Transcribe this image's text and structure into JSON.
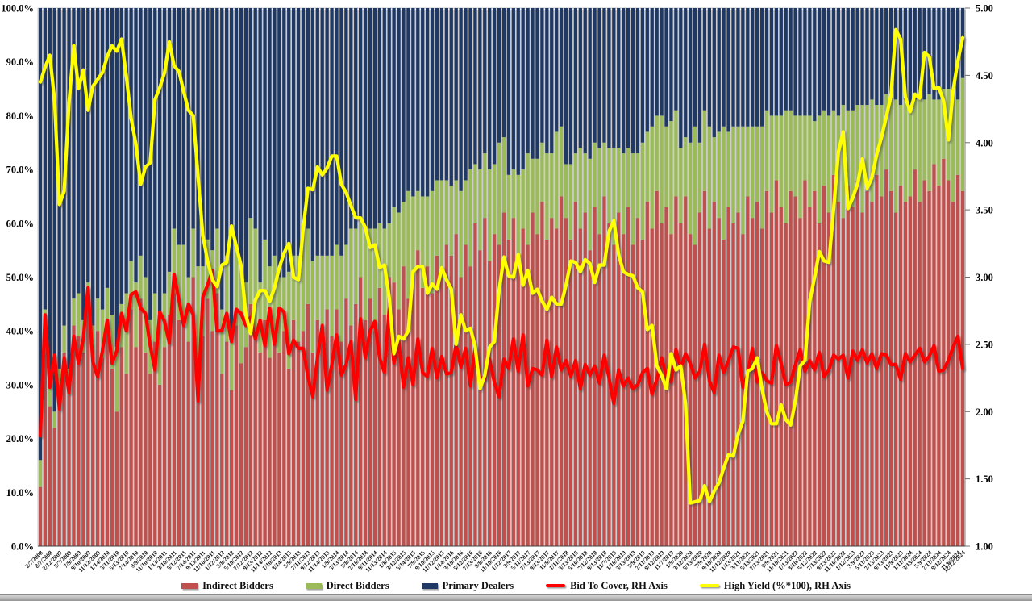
{
  "chart_data": {
    "type": "bar",
    "subtype": "stacked-100-percent-with-line-overlays",
    "title": "",
    "grid": false,
    "legend_position": "bottom",
    "left_axis": {
      "min": 0,
      "max": 100,
      "ticks": [
        "100.0%",
        "90.0%",
        "80.0%",
        "70.0%",
        "60.0%",
        "50.0%",
        "40.0%",
        "30.0%",
        "20.0%",
        "10.0%",
        "0.0%"
      ]
    },
    "right_axis": {
      "min": 1,
      "max": 5,
      "ticks": [
        "5.00",
        "4.50",
        "4.00",
        "3.50",
        "3.00",
        "2.50",
        "2.00",
        "1.50",
        "1.00"
      ]
    },
    "x_labels": [
      "2/7/2008",
      "8/7/2008",
      "2/12/2009",
      "5/7/2009",
      "7/9/2009",
      "9/10/2009",
      "11/12/2009",
      "1/14/2010",
      "3/11/2010",
      "5/13/2010",
      "7/14/2010",
      "9/9/2010",
      "11/10/2010",
      "1/13/2011",
      "3/10/2011",
      "5/12/2011",
      "7/14/2011",
      "9/13/2011",
      "11/10/2011",
      "1/12/2012",
      "3/8/2012",
      "5/10/2012",
      "7/12/2012",
      "9/13/2012",
      "11/14/2012",
      "1/10/2013",
      "3/14/2013",
      "5/9/2013",
      "7/11/2013",
      "9/12/2013",
      "11/14/2013",
      "1/9/2014",
      "3/13/2014",
      "5/8/2014",
      "7/10/2014",
      "9/11/2014",
      "11/13/2014",
      "1/8/2015",
      "3/12/2015",
      "5/14/2015",
      "7/9/2015",
      "9/10/2015",
      "11/12/2015",
      "1/14/2016",
      "3/10/2016",
      "5/12/2016",
      "7/13/2016",
      "9/8/2016",
      "11/10/2016",
      "1/12/2017",
      "3/9/2017",
      "5/11/2017",
      "7/13/2017",
      "9/13/2017",
      "11/9/2017",
      "1/11/2018",
      "3/13/2018",
      "5/10/2018",
      "7/12/2018",
      "9/13/2018",
      "11/7/2018",
      "1/10/2019",
      "3/13/2019",
      "5/9/2019",
      "7/11/2019",
      "9/12/2019",
      "11/7/2019",
      "1/9/2020",
      "3/12/2020",
      "5/13/2020",
      "7/9/2020",
      "9/10/2020",
      "11/12/2020",
      "1/13/2021",
      "3/11/2021",
      "5/13/2021",
      "7/13/2021",
      "9/9/2021",
      "11/10/2021",
      "1/13/2022",
      "3/10/2022",
      "5/12/2022",
      "7/13/2022",
      "9/13/2022",
      "11/10/2022",
      "1/12/2023",
      "3/9/2023",
      "5/11/2023",
      "7/13/2023",
      "9/13/2023",
      "11/9/2023",
      "1/11/2024",
      "3/13/2024",
      "5/9/2024",
      "7/11/2024",
      "9/12/2024",
      "11/6/2024",
      "12/12/2024"
    ],
    "x_label_rule": "labels shown for every other auction plus the final one",
    "series": [
      {
        "name": "Indirect Bidders",
        "type": "bar-stack",
        "axis": "left",
        "color": "#C0504D",
        "values": [
          11,
          42,
          26,
          22,
          30,
          36,
          29,
          41,
          39,
          36,
          44,
          34,
          40,
          35,
          41,
          33,
          25,
          37,
          32,
          44,
          37,
          46,
          36,
          32,
          38,
          30,
          37,
          43,
          47,
          42,
          41,
          38,
          50,
          35,
          39,
          46,
          40,
          47,
          32,
          38,
          29,
          41,
          34,
          37,
          45,
          39,
          36,
          42,
          35,
          40,
          36,
          40,
          33,
          42,
          38,
          40,
          45,
          36,
          42,
          38,
          44,
          39,
          44,
          38,
          46,
          41,
          45,
          50,
          42,
          46,
          40,
          48,
          43,
          50,
          49,
          44,
          52,
          46,
          50,
          55,
          48,
          52,
          47,
          54,
          50,
          56,
          54,
          58,
          50,
          56,
          52,
          60,
          55,
          61,
          53,
          58,
          56,
          62,
          57,
          61,
          54,
          59,
          56,
          62,
          58,
          64,
          57,
          61,
          59,
          65,
          61,
          57,
          64,
          59,
          62,
          55,
          63,
          58,
          65,
          60,
          56,
          62,
          58,
          63,
          56,
          61,
          57,
          64,
          59,
          66,
          60,
          63,
          58,
          65,
          60,
          65,
          58,
          56,
          62,
          66,
          59,
          64,
          61,
          57,
          63,
          60,
          62,
          58,
          65,
          61,
          64,
          59,
          66,
          62,
          68,
          63,
          60,
          66,
          65,
          61,
          68,
          63,
          66,
          60,
          67,
          62,
          69,
          64,
          61,
          67,
          63,
          68,
          62,
          66,
          64,
          69,
          65,
          70,
          66,
          62,
          67,
          64,
          65,
          70,
          64,
          68,
          66,
          71,
          67,
          72,
          68,
          64,
          69,
          66
        ]
      },
      {
        "name": "Direct Bidders",
        "type": "bar-stack",
        "axis": "left",
        "color": "#9BBB59",
        "values": [
          5,
          2,
          4,
          3,
          3,
          5,
          4,
          5,
          8,
          6,
          5,
          7,
          6,
          9,
          7,
          10,
          12,
          8,
          15,
          9,
          12,
          8,
          14,
          10,
          9,
          13,
          10,
          8,
          12,
          14,
          15,
          12,
          9,
          17,
          13,
          11,
          15,
          12,
          12,
          16,
          10,
          14,
          18,
          12,
          16,
          20,
          13,
          15,
          17,
          14,
          14,
          10,
          18,
          12,
          16,
          20,
          14,
          17,
          12,
          16,
          10,
          15,
          12,
          16,
          10,
          18,
          14,
          11,
          17,
          13,
          19,
          12,
          16,
          10,
          14,
          18,
          12,
          20,
          15,
          11,
          17,
          13,
          19,
          14,
          18,
          12,
          13,
          10,
          16,
          12,
          18,
          11,
          15,
          12,
          17,
          13,
          19,
          14,
          12,
          9,
          15,
          11,
          17,
          10,
          14,
          11,
          16,
          12,
          18,
          13,
          10,
          14,
          9,
          15,
          11,
          17,
          12,
          16,
          10,
          14,
          18,
          12,
          15,
          11,
          17,
          12,
          18,
          13,
          19,
          14,
          20,
          15,
          21,
          16,
          14,
          11,
          17,
          22,
          13,
          15,
          19,
          12,
          16,
          21,
          14,
          18,
          16,
          20,
          13,
          17,
          14,
          19,
          15,
          18,
          12,
          17,
          21,
          15,
          15,
          19,
          12,
          17,
          13,
          20,
          14,
          18,
          12,
          16,
          21,
          14,
          18,
          14,
          20,
          16,
          19,
          13,
          17,
          14,
          18,
          21,
          15,
          19,
          17,
          13,
          19,
          15,
          18,
          12,
          16,
          13,
          17,
          20,
          14,
          21
        ]
      },
      {
        "name": "Primary Dealers",
        "type": "bar-stack",
        "axis": "left",
        "color": "#1F3864",
        "derived_rule": "100 - Indirect Bidders - Direct Bidders (chart is a 100% stacked bar)"
      },
      {
        "name": "Bid To Cover, RH Axis",
        "type": "line",
        "axis": "right",
        "color": "#FF0000",
        "values": [
          1.82,
          2.72,
          2.18,
          2.42,
          2.02,
          2.4,
          2.14,
          2.56,
          2.36,
          2.54,
          2.92,
          2.37,
          2.26,
          2.45,
          2.68,
          2.36,
          2.45,
          2.73,
          2.6,
          2.87,
          2.89,
          2.77,
          2.73,
          2.49,
          2.31,
          2.74,
          2.67,
          2.51,
          3.02,
          2.83,
          2.64,
          2.8,
          2.72,
          2.08,
          2.85,
          2.94,
          3.05,
          2.6,
          2.6,
          2.73,
          2.52,
          2.76,
          2.73,
          2.64,
          2.7,
          2.54,
          2.68,
          2.49,
          2.77,
          2.5,
          2.77,
          2.74,
          2.43,
          2.53,
          2.47,
          2.47,
          2.26,
          2.11,
          2.4,
          2.64,
          2.16,
          2.35,
          2.57,
          2.27,
          2.35,
          2.52,
          2.09,
          2.69,
          2.4,
          2.6,
          2.67,
          2.4,
          2.29,
          2.76,
          2.36,
          2.52,
          2.18,
          2.4,
          2.2,
          2.54,
          2.29,
          2.26,
          2.47,
          2.25,
          2.41,
          2.28,
          2.29,
          2.5,
          2.33,
          2.47,
          2.19,
          2.48,
          2.26,
          2.24,
          2.39,
          2.22,
          2.11,
          2.39,
          2.32,
          2.54,
          2.3,
          2.57,
          2.19,
          2.32,
          2.31,
          2.27,
          2.53,
          2.26,
          2.48,
          2.31,
          2.38,
          2.26,
          2.38,
          2.17,
          2.35,
          2.27,
          2.34,
          2.21,
          2.42,
          2.25,
          2.06,
          2.31,
          2.19,
          2.25,
          2.17,
          2.2,
          2.29,
          2.32,
          2.13,
          2.24,
          2.4,
          2.26,
          2.22,
          2.46,
          2.32,
          2.43,
          2.36,
          2.25,
          2.3,
          2.5,
          2.23,
          2.14,
          2.42,
          2.29,
          2.38,
          2.48,
          2.47,
          2.18,
          2.28,
          2.47,
          2.22,
          2.29,
          2.23,
          2.21,
          2.49,
          2.36,
          2.2,
          2.22,
          2.35,
          2.46,
          2.3,
          2.38,
          2.31,
          2.44,
          2.26,
          2.31,
          2.42,
          2.39,
          2.42,
          2.25,
          2.45,
          2.38,
          2.46,
          2.36,
          2.43,
          2.32,
          2.43,
          2.42,
          2.35,
          2.35,
          2.24,
          2.43,
          2.37,
          2.42,
          2.47,
          2.37,
          2.41,
          2.49,
          2.3,
          2.31,
          2.38,
          2.48,
          2.56,
          2.32
        ]
      },
      {
        "name": "High Yield (%*100), RH Axis",
        "type": "line",
        "axis": "right",
        "color": "#FFFF00",
        "values": [
          4.45,
          4.56,
          4.65,
          4.31,
          3.54,
          3.64,
          4.29,
          4.72,
          4.4,
          4.54,
          4.24,
          4.42,
          4.47,
          4.52,
          4.64,
          4.72,
          4.68,
          4.77,
          4.49,
          4.18,
          3.99,
          3.69,
          3.82,
          3.85,
          4.32,
          4.41,
          4.52,
          4.75,
          4.57,
          4.53,
          4.38,
          4.24,
          4.2,
          3.75,
          3.31,
          3.12,
          2.98,
          2.93,
          3.09,
          3.11,
          3.38,
          3.23,
          3.09,
          2.72,
          2.58,
          2.83,
          2.9,
          2.9,
          2.82,
          2.92,
          3.07,
          3.18,
          3.25,
          3.0,
          2.98,
          3.36,
          3.66,
          3.65,
          3.82,
          3.76,
          3.81,
          3.9,
          3.9,
          3.69,
          3.63,
          3.53,
          3.44,
          3.44,
          3.37,
          3.22,
          3.24,
          3.07,
          3.09,
          2.85,
          2.43,
          2.56,
          2.54,
          2.6,
          3.04,
          3.08,
          3.08,
          2.88,
          2.95,
          2.91,
          3.07,
          2.98,
          2.91,
          2.5,
          2.72,
          2.6,
          2.62,
          2.48,
          2.17,
          2.27,
          2.48,
          2.52,
          2.9,
          3.15,
          3.01,
          3.0,
          3.17,
          2.94,
          3.05,
          2.88,
          2.91,
          2.82,
          2.76,
          2.85,
          2.8,
          2.8,
          2.94,
          3.12,
          3.11,
          3.04,
          3.13,
          3.1,
          2.96,
          3.09,
          3.09,
          3.34,
          3.42,
          3.17,
          3.04,
          3.02,
          3.01,
          2.92,
          2.89,
          2.61,
          2.64,
          2.34,
          2.27,
          2.17,
          2.43,
          2.31,
          2.34,
          2.06,
          1.32,
          1.33,
          1.34,
          1.45,
          1.33,
          1.41,
          1.47,
          1.58,
          1.68,
          1.67,
          1.83,
          1.93,
          2.3,
          2.32,
          2.4,
          2.17,
          2.0,
          1.91,
          1.91,
          2.05,
          1.94,
          1.9,
          2.08,
          2.34,
          2.38,
          2.82,
          3.0,
          3.19,
          3.12,
          3.11,
          3.51,
          3.93,
          4.08,
          3.51,
          3.59,
          3.69,
          3.88,
          3.66,
          3.74,
          3.91,
          4.04,
          4.19,
          4.35,
          4.84,
          4.77,
          4.34,
          4.23,
          4.36,
          4.33,
          4.67,
          4.64,
          4.4,
          4.41,
          4.31,
          4.02,
          4.39,
          4.61,
          4.78
        ]
      }
    ]
  }
}
